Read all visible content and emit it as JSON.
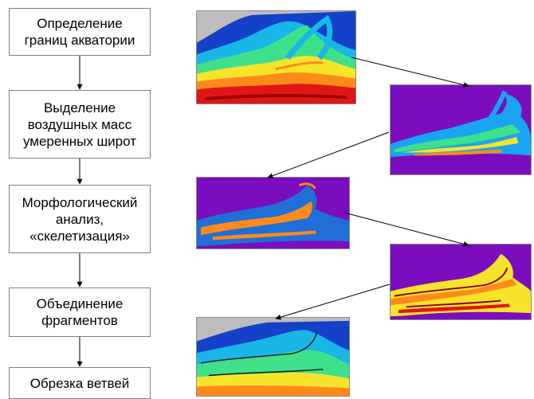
{
  "steps": [
    {
      "label": "Определение\nграниц акватории"
    },
    {
      "label": "Выделение\nвоздушных масс\nумеренных широт"
    },
    {
      "label": "Морфологический\nанализ,\n«скелетизация»"
    },
    {
      "label": "Объединение\nфрагментов"
    },
    {
      "label": "Обрезка ветвей"
    }
  ],
  "panels": [
    {
      "scheme": "rainbow-temperature",
      "background": "#bdbdbd"
    },
    {
      "scheme": "masked-temperature",
      "background": "#7a0dbd"
    },
    {
      "scheme": "skeleton-binary",
      "background": "#7a0dbd"
    },
    {
      "scheme": "distance-heat",
      "background": "#7a0dbd"
    },
    {
      "scheme": "merged-overlay",
      "background": "#bdbdbd"
    }
  ],
  "colors": {
    "box_border": "#7f7f7f",
    "arrow": "#000000",
    "land_gray": "#bdbdbd",
    "mask_purple": "#7a0dbd",
    "skeleton_blue": "#1f6fd6",
    "skeleton_orange": "#ff8a1c"
  }
}
